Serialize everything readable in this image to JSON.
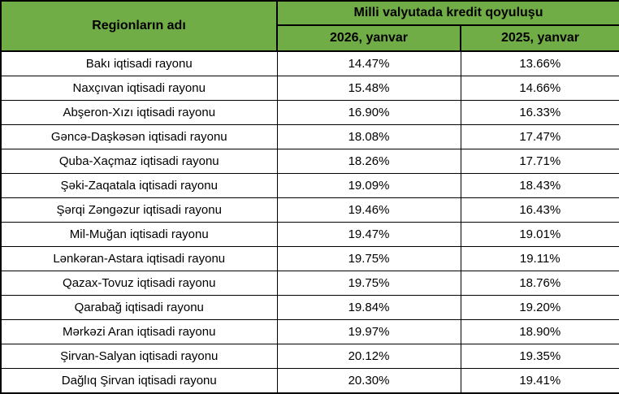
{
  "colors": {
    "header_background": "#70AD47",
    "border": "#000000",
    "text": "#000000",
    "row_background": "#ffffff"
  },
  "table": {
    "header": {
      "region_column": "Regionların adı",
      "group_column": "Milli valyutada kredit qoyuluşu",
      "col_2026": "2026, yanvar",
      "col_2025": "2025, yanvar"
    },
    "rows": [
      {
        "region": "Bakı iqtisadi rayonu",
        "y2026": "14.47%",
        "y2025": "13.66%"
      },
      {
        "region": "Naxçıvan iqtisadi rayonu",
        "y2026": "15.48%",
        "y2025": "14.66%"
      },
      {
        "region": "Abşeron-Xızı iqtisadi rayonu",
        "y2026": "16.90%",
        "y2025": "16.33%"
      },
      {
        "region": "Gəncə-Daşkəsən iqtisadi rayonu",
        "y2026": "18.08%",
        "y2025": "17.47%"
      },
      {
        "region": "Quba-Xaçmaz iqtisadi rayonu",
        "y2026": "18.26%",
        "y2025": "17.71%"
      },
      {
        "region": "Şəki-Zaqatala iqtisadi rayonu",
        "y2026": "19.09%",
        "y2025": "18.43%"
      },
      {
        "region": "Şərqi Zəngəzur iqtisadi rayonu",
        "y2026": "19.46%",
        "y2025": "16.43%"
      },
      {
        "region": "Mil-Muğan iqtisadi rayonu",
        "y2026": "19.47%",
        "y2025": "19.01%"
      },
      {
        "region": "Lənkəran-Astara iqtisadi rayonu",
        "y2026": "19.75%",
        "y2025": "19.11%"
      },
      {
        "region": "Qazax-Tovuz iqtisadi rayonu",
        "y2026": "19.75%",
        "y2025": "18.76%"
      },
      {
        "region": "Qarabağ iqtisadi rayonu",
        "y2026": "19.84%",
        "y2025": "19.20%"
      },
      {
        "region": "Mərkəzi Aran iqtisadi rayonu",
        "y2026": "19.97%",
        "y2025": "18.90%"
      },
      {
        "region": "Şirvan-Salyan iqtisadi rayonu",
        "y2026": "20.12%",
        "y2025": "19.35%"
      },
      {
        "region": "Dağlıq Şirvan iqtisadi rayonu",
        "y2026": "20.30%",
        "y2025": "19.41%"
      }
    ]
  },
  "chart_data": {
    "type": "table",
    "title": "Milli valyutada kredit qoyuluşu",
    "categories": [
      "Bakı iqtisadi rayonu",
      "Naxçıvan iqtisadi rayonu",
      "Abşeron-Xızı iqtisadi rayonu",
      "Gəncə-Daşkəsən iqtisadi rayonu",
      "Quba-Xaçmaz iqtisadi rayonu",
      "Şəki-Zaqatala iqtisadi rayonu",
      "Şərqi Zəngəzur iqtisadi rayonu",
      "Mil-Muğan iqtisadi rayonu",
      "Lənkəran-Astara iqtisadi rayonu",
      "Qazax-Tovuz iqtisadi rayonu",
      "Qarabağ iqtisadi rayonu",
      "Mərkəzi Aran iqtisadi rayonu",
      "Şirvan-Salyan iqtisadi rayonu",
      "Dağlıq Şirvan iqtisadi rayonu"
    ],
    "series": [
      {
        "name": "2026, yanvar",
        "values": [
          14.47,
          15.48,
          16.9,
          18.08,
          18.26,
          19.09,
          19.46,
          19.47,
          19.75,
          19.75,
          19.84,
          19.97,
          20.12,
          20.3
        ]
      },
      {
        "name": "2025, yanvar",
        "values": [
          13.66,
          14.66,
          16.33,
          17.47,
          17.71,
          18.43,
          16.43,
          19.01,
          19.11,
          18.76,
          19.2,
          18.9,
          19.35,
          19.41
        ]
      }
    ],
    "unit": "%"
  }
}
